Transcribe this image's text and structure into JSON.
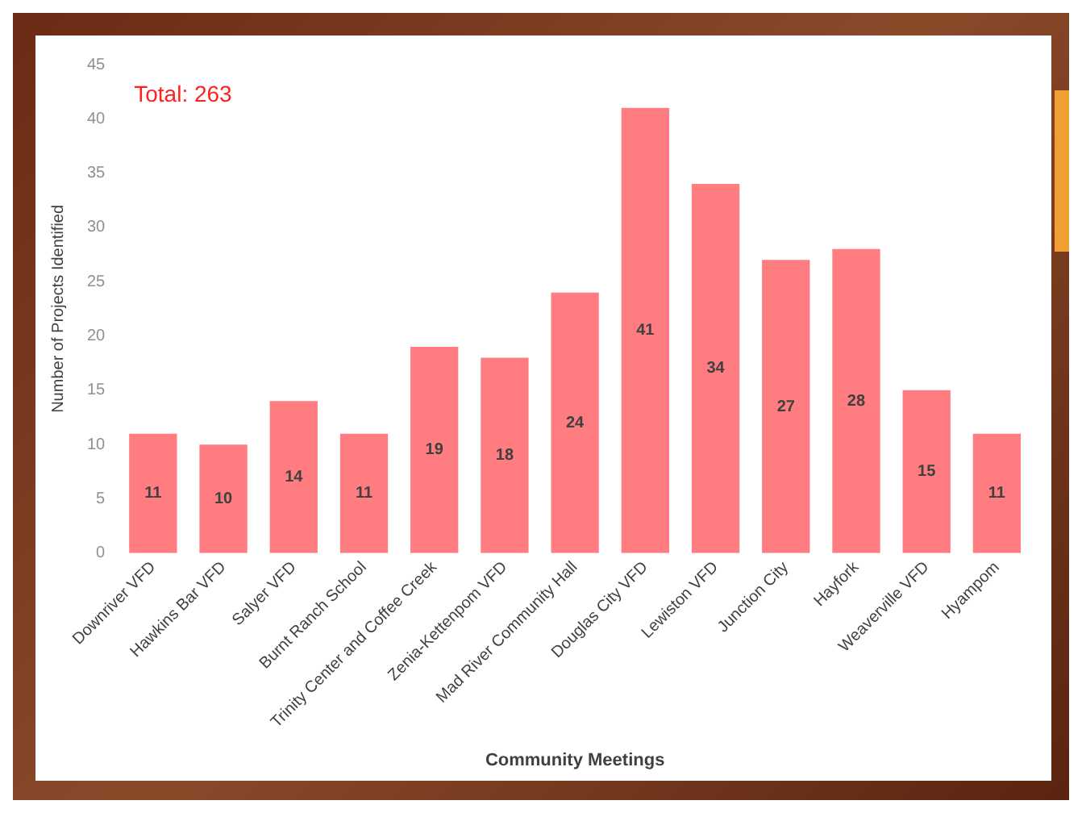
{
  "chart_data": {
    "type": "bar",
    "categories": [
      "Downriver VFD",
      "Hawkins Bar VFD",
      "Salyer VFD",
      "Burnt Ranch School",
      "Trinity Center and Coffee Creek",
      "Zenia-Kettenpom VFD",
      "Mad River Community Hall",
      "Douglas City VFD",
      "Lewiston VFD",
      "Junction City",
      "Hayfork",
      "Weaverville VFD",
      "Hyampom"
    ],
    "values": [
      11,
      10,
      14,
      11,
      19,
      18,
      24,
      41,
      34,
      27,
      28,
      15,
      11
    ],
    "color": "#ff7c80",
    "xlabel": "Community Meetings",
    "ylabel": "Number of Projects Identified",
    "ylim": [
      0,
      45
    ],
    "yticks": [
      0,
      5,
      10,
      15,
      20,
      25,
      30,
      35,
      40,
      45
    ],
    "grid": false,
    "legend": false,
    "data_labels": true,
    "annotations": [
      "Total: 263"
    ]
  }
}
